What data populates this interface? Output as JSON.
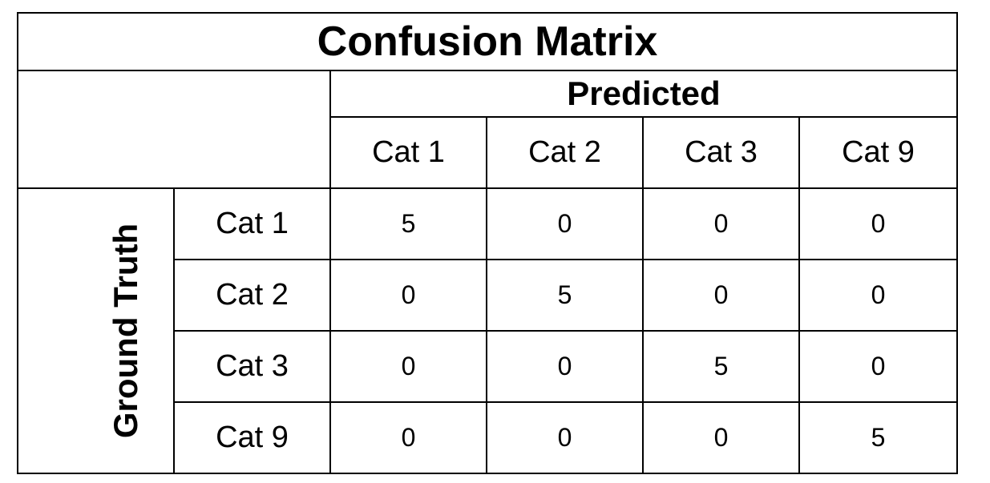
{
  "chart_data": {
    "type": "table",
    "title": "Confusion Matrix",
    "column_axis_label": "Predicted",
    "row_axis_label": "Ground Truth",
    "columns": [
      "Cat 1",
      "Cat 2",
      "Cat 3",
      "Cat 9"
    ],
    "rows": [
      "Cat 1",
      "Cat 2",
      "Cat 3",
      "Cat 9"
    ],
    "matrix": [
      [
        5,
        0,
        0,
        0
      ],
      [
        0,
        5,
        0,
        0
      ],
      [
        0,
        0,
        5,
        0
      ],
      [
        0,
        0,
        0,
        5
      ]
    ]
  }
}
